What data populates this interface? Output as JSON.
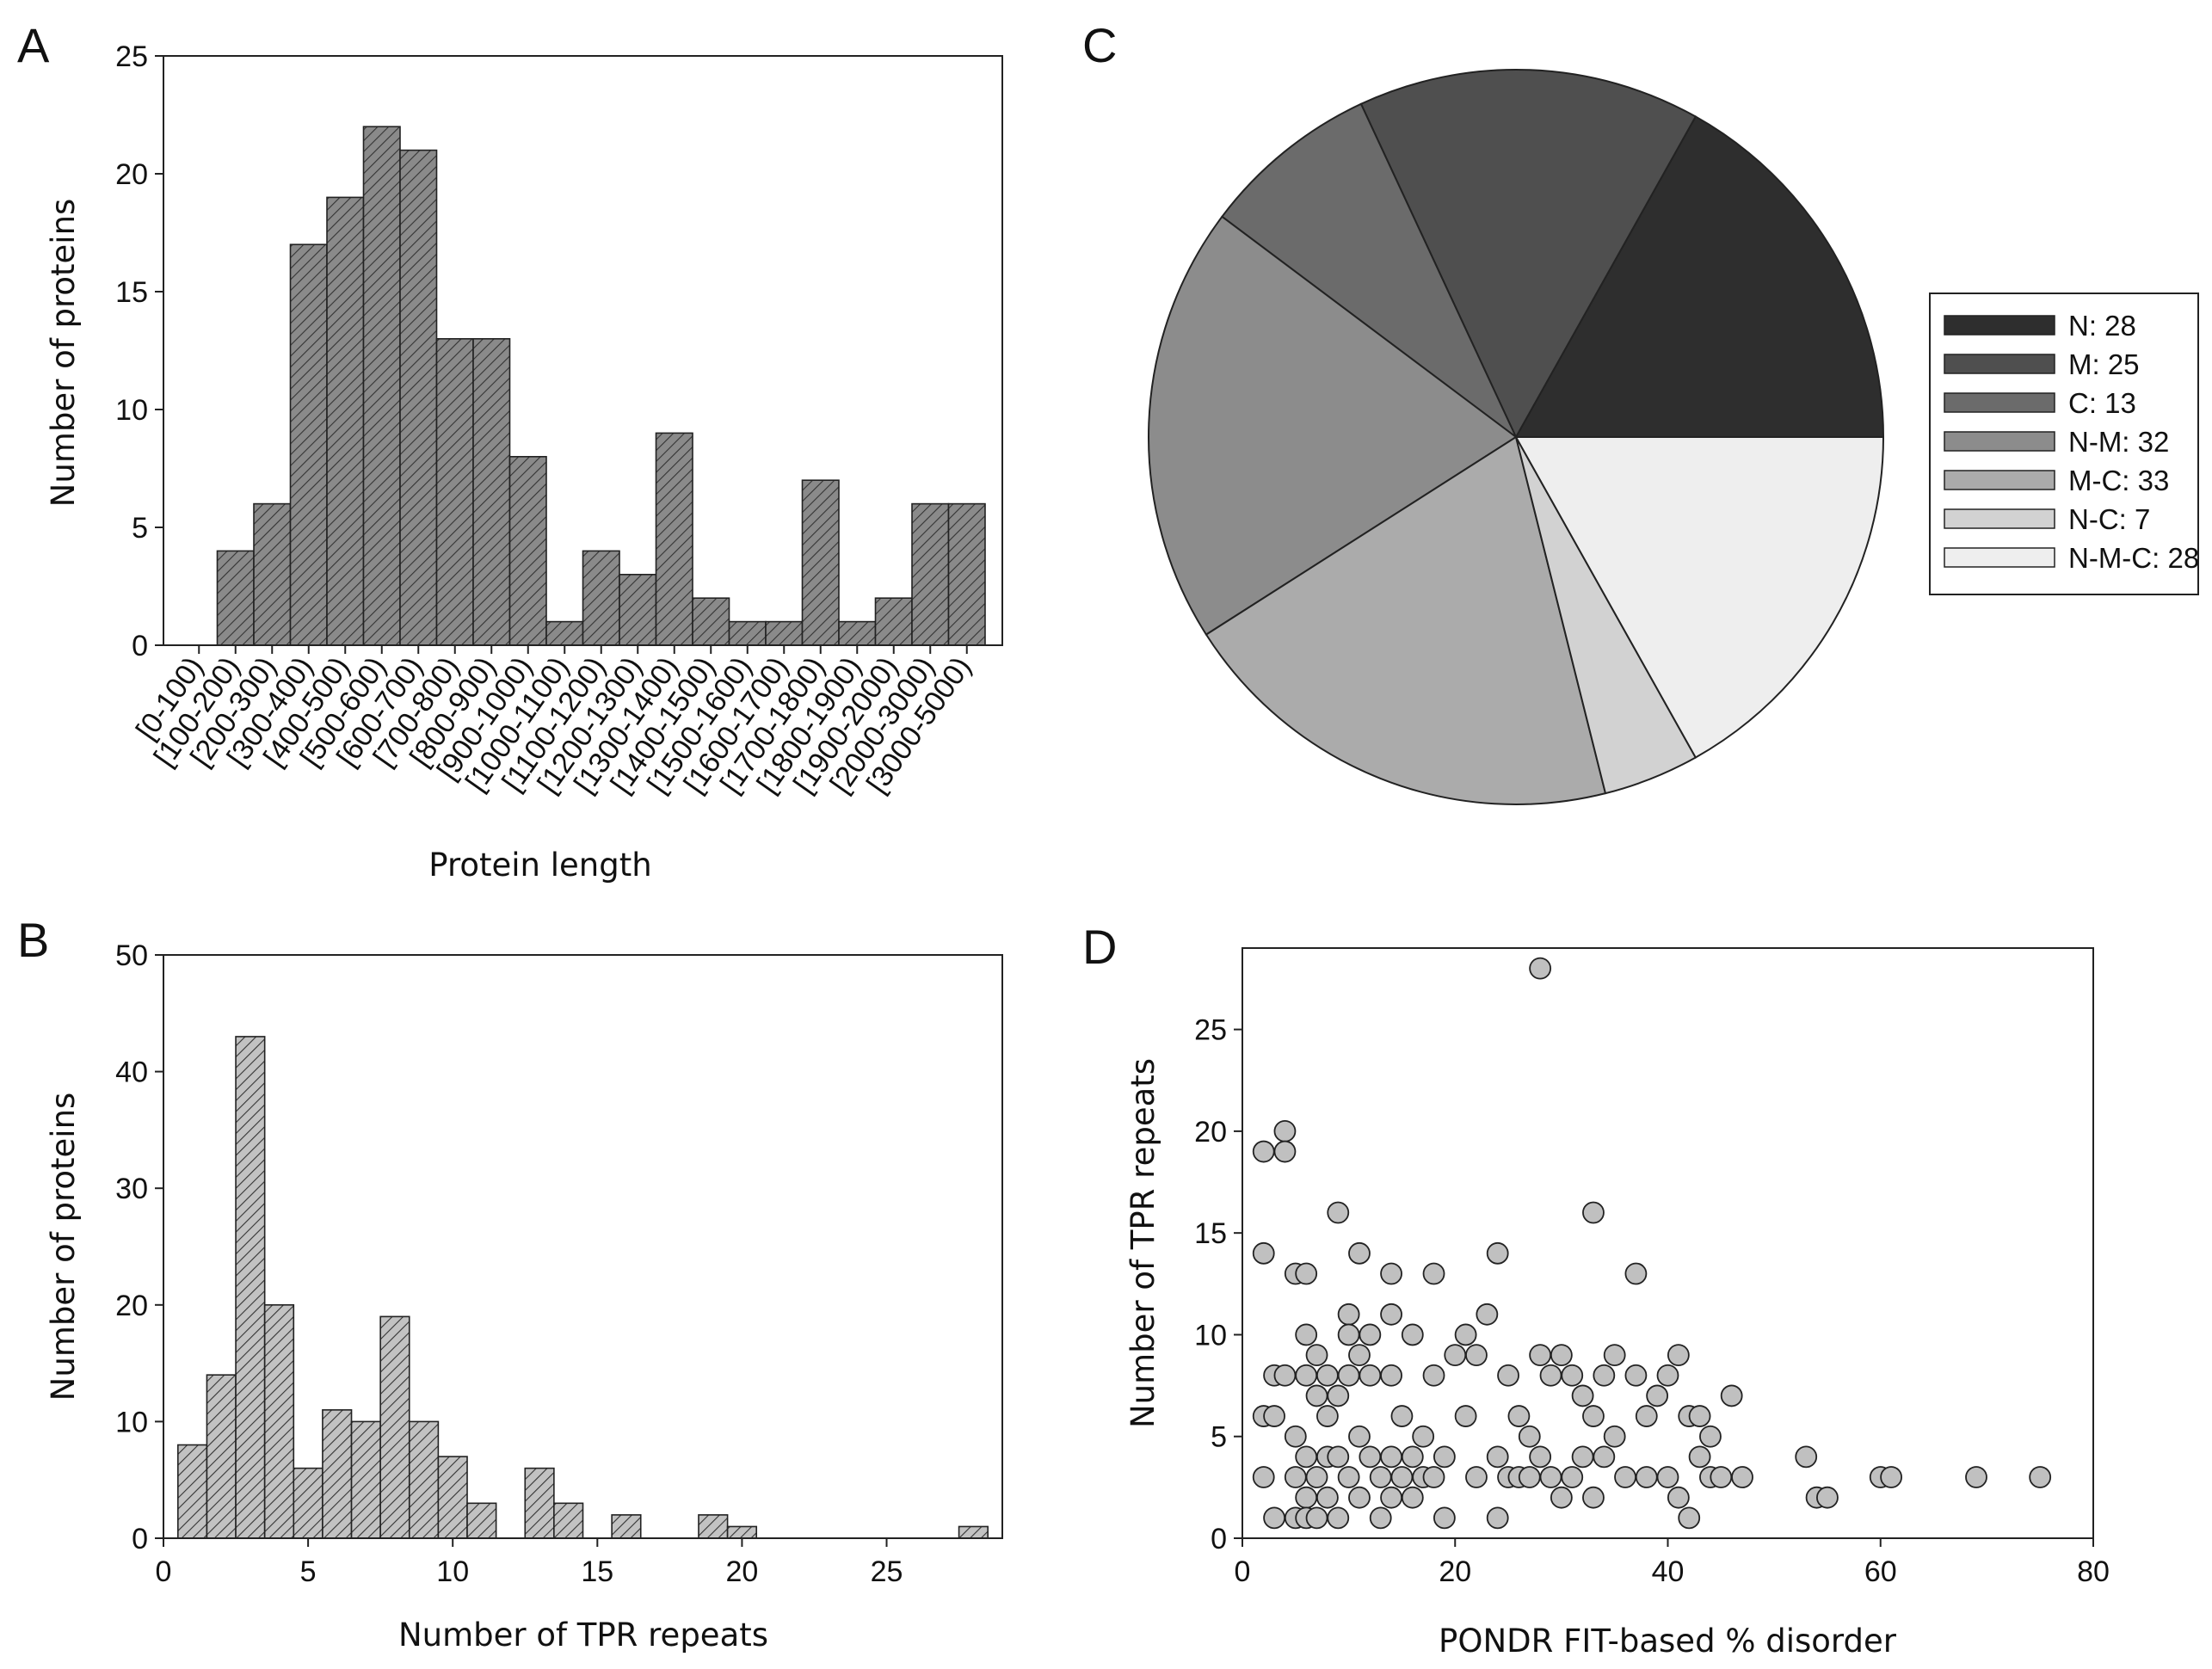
{
  "chart_data": [
    {
      "panel": "A",
      "type": "bar",
      "ylabel": "Number of proteins",
      "xlabel": "Protein length",
      "ylim": [
        0,
        25
      ],
      "yticks": [
        0,
        5,
        10,
        15,
        20,
        25
      ],
      "categories": [
        "[0-100)",
        "[100-200)",
        "[200-300)",
        "[300-400)",
        "[400-500)",
        "[500-600)",
        "[600-700)",
        "[700-800)",
        "[800-900)",
        "[900-1000)",
        "[1000-1100)",
        "[1100-1200)",
        "[1200-1300)",
        "[1300-1400)",
        "[1400-1500)",
        "[1500-1600)",
        "[1600-1700)",
        "[1700-1800)",
        "[1800-1900)",
        "[1900-2000)",
        "[2000-3000)",
        "[3000-5000)"
      ],
      "values": [
        0,
        4,
        6,
        17,
        19,
        22,
        21,
        13,
        13,
        8,
        1,
        4,
        3,
        9,
        2,
        1,
        1,
        7,
        1,
        2,
        6,
        6
      ],
      "bar_color": "#8a8a8a",
      "hatch": "diagonal"
    },
    {
      "panel": "B",
      "type": "bar",
      "ylabel": "Number of proteins",
      "xlabel": "Number of TPR repeats",
      "xlim": [
        0,
        29
      ],
      "ylim": [
        0,
        50
      ],
      "xticks": [
        0,
        5,
        10,
        15,
        20,
        25
      ],
      "yticks": [
        0,
        10,
        20,
        30,
        40,
        50
      ],
      "x": [
        1,
        2,
        3,
        4,
        5,
        6,
        7,
        8,
        9,
        10,
        11,
        13,
        14,
        16,
        19,
        20,
        28
      ],
      "values": [
        8,
        14,
        43,
        20,
        6,
        11,
        10,
        19,
        10,
        7,
        3,
        6,
        3,
        2,
        2,
        1,
        1
      ],
      "bar_color": "#c2c2c2",
      "hatch": "diagonal"
    },
    {
      "panel": "C",
      "type": "pie",
      "labels": [
        "N: 28",
        "M: 25",
        "C: 13",
        "N-M: 32",
        "M-C: 33",
        "N-C: 7",
        "N-M-C: 28"
      ],
      "values": [
        28,
        25,
        13,
        32,
        33,
        7,
        28
      ],
      "colors": [
        "#2e2e2e",
        "#4f4f4f",
        "#6b6b6b",
        "#8c8c8c",
        "#ababab",
        "#d2d2d2",
        "#eeeeee"
      ],
      "legend_position": "right"
    },
    {
      "panel": "D",
      "type": "scatter",
      "xlabel": "PONDR FIT-based % disorder",
      "ylabel": "Number of TPR repeats",
      "xlim": [
        0,
        80
      ],
      "ylim": [
        0,
        29
      ],
      "xticks": [
        0,
        20,
        40,
        60,
        80
      ],
      "yticks": [
        0,
        5,
        10,
        15,
        20,
        25
      ],
      "marker_color": "#c0c0c0",
      "points": [
        [
          2,
          19
        ],
        [
          4,
          20
        ],
        [
          4,
          19
        ],
        [
          2,
          14
        ],
        [
          5,
          13
        ],
        [
          6,
          13
        ],
        [
          9,
          16
        ],
        [
          11,
          14
        ],
        [
          18,
          13
        ],
        [
          14,
          13
        ],
        [
          24,
          14
        ],
        [
          33,
          16
        ],
        [
          37,
          13
        ],
        [
          28,
          28
        ],
        [
          2,
          6
        ],
        [
          2,
          3
        ],
        [
          3,
          8
        ],
        [
          3,
          6
        ],
        [
          3,
          1
        ],
        [
          4,
          8
        ],
        [
          5,
          5
        ],
        [
          5,
          3
        ],
        [
          5,
          1
        ],
        [
          6,
          10
        ],
        [
          6,
          8
        ],
        [
          6,
          4
        ],
        [
          6,
          2
        ],
        [
          6,
          1
        ],
        [
          7,
          9
        ],
        [
          7,
          7
        ],
        [
          7,
          3
        ],
        [
          7,
          1
        ],
        [
          8,
          8
        ],
        [
          8,
          6
        ],
        [
          8,
          4
        ],
        [
          8,
          2
        ],
        [
          9,
          7
        ],
        [
          9,
          4
        ],
        [
          9,
          1
        ],
        [
          10,
          11
        ],
        [
          10,
          10
        ],
        [
          10,
          8
        ],
        [
          10,
          3
        ],
        [
          11,
          9
        ],
        [
          11,
          5
        ],
        [
          11,
          2
        ],
        [
          12,
          10
        ],
        [
          12,
          8
        ],
        [
          12,
          4
        ],
        [
          13,
          3
        ],
        [
          13,
          1
        ],
        [
          14,
          11
        ],
        [
          14,
          8
        ],
        [
          14,
          4
        ],
        [
          14,
          2
        ],
        [
          15,
          6
        ],
        [
          15,
          3
        ],
        [
          16,
          10
        ],
        [
          16,
          4
        ],
        [
          16,
          2
        ],
        [
          17,
          5
        ],
        [
          17,
          3
        ],
        [
          18,
          8
        ],
        [
          18,
          3
        ],
        [
          19,
          4
        ],
        [
          19,
          1
        ],
        [
          20,
          9
        ],
        [
          21,
          10
        ],
        [
          21,
          6
        ],
        [
          22,
          9
        ],
        [
          22,
          3
        ],
        [
          23,
          11
        ],
        [
          24,
          4
        ],
        [
          24,
          1
        ],
        [
          25,
          8
        ],
        [
          25,
          3
        ],
        [
          26,
          6
        ],
        [
          26,
          3
        ],
        [
          27,
          5
        ],
        [
          27,
          3
        ],
        [
          28,
          9
        ],
        [
          28,
          4
        ],
        [
          29,
          8
        ],
        [
          29,
          3
        ],
        [
          30,
          9
        ],
        [
          30,
          2
        ],
        [
          31,
          8
        ],
        [
          31,
          3
        ],
        [
          32,
          7
        ],
        [
          32,
          4
        ],
        [
          33,
          6
        ],
        [
          33,
          2
        ],
        [
          34,
          8
        ],
        [
          34,
          4
        ],
        [
          35,
          9
        ],
        [
          35,
          5
        ],
        [
          36,
          3
        ],
        [
          37,
          8
        ],
        [
          38,
          6
        ],
        [
          38,
          3
        ],
        [
          39,
          7
        ],
        [
          40,
          8
        ],
        [
          40,
          3
        ],
        [
          41,
          9
        ],
        [
          41,
          2
        ],
        [
          42,
          6
        ],
        [
          42,
          1
        ],
        [
          43,
          4
        ],
        [
          43,
          6
        ],
        [
          44,
          5
        ],
        [
          44,
          3
        ],
        [
          45,
          3
        ],
        [
          46,
          7
        ],
        [
          47,
          3
        ],
        [
          53,
          4
        ],
        [
          54,
          2
        ],
        [
          55,
          2
        ],
        [
          60,
          3
        ],
        [
          61,
          3
        ],
        [
          69,
          3
        ],
        [
          75,
          3
        ]
      ]
    }
  ]
}
